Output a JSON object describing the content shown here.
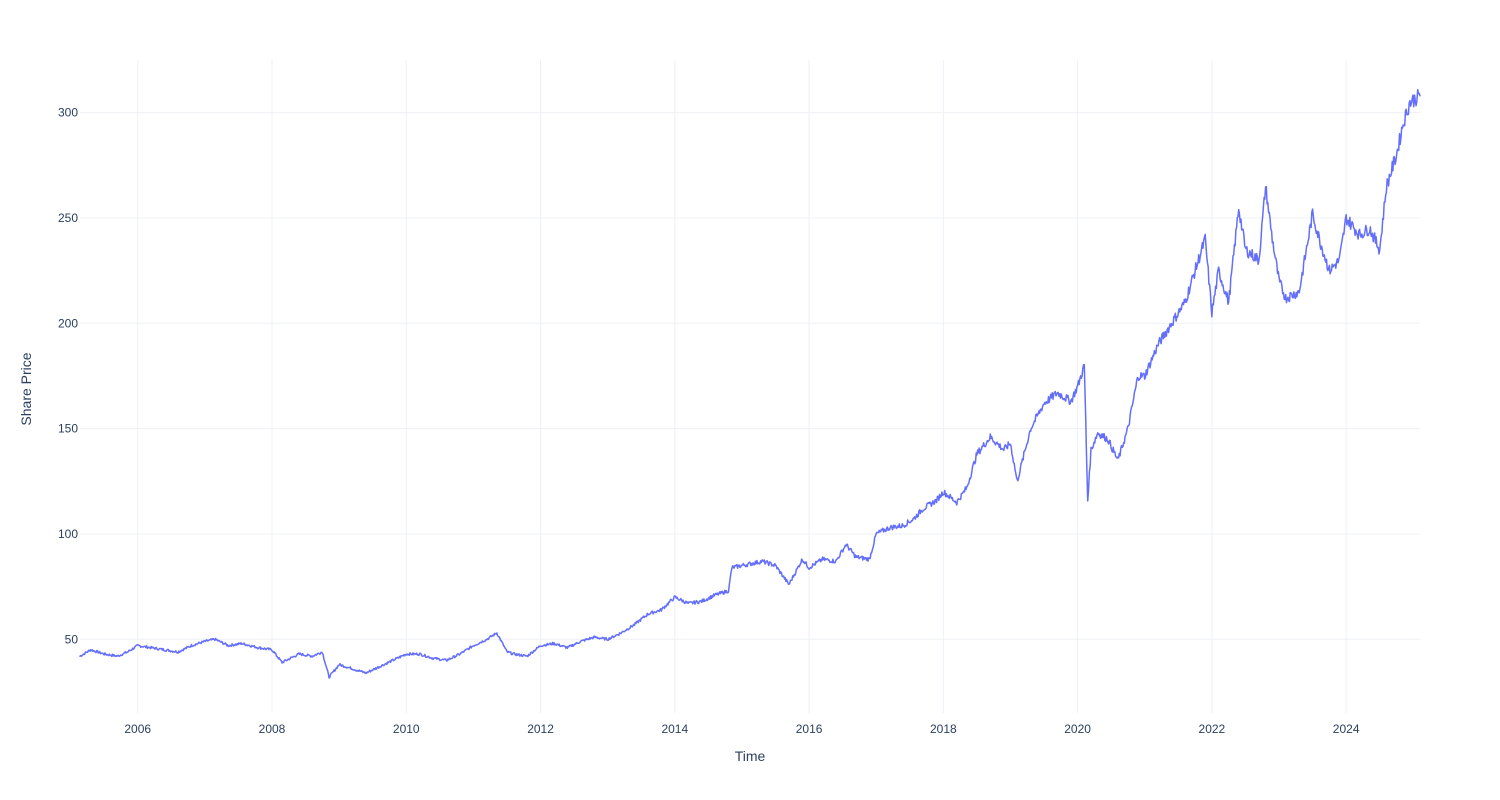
{
  "chart_data": {
    "type": "line",
    "title": "",
    "xlabel": "Time",
    "ylabel": "Share Price",
    "xlim": [
      2005.14,
      2025.1
    ],
    "ylim": [
      15,
      325
    ],
    "x_ticks": [
      2006,
      2008,
      2010,
      2012,
      2014,
      2016,
      2018,
      2020,
      2022,
      2024
    ],
    "x_tick_labels": [
      "2006",
      "2008",
      "2010",
      "2012",
      "2014",
      "2016",
      "2018",
      "2020",
      "2022",
      "2024"
    ],
    "y_ticks": [
      50,
      100,
      150,
      200,
      250,
      300
    ],
    "y_tick_labels": [
      "50",
      "100",
      "150",
      "200",
      "250",
      "300"
    ],
    "grid": true,
    "legend": "none",
    "colors": {
      "line": "#636efa",
      "grid": "#eef0f4",
      "text": "#2a3f5f"
    },
    "series": [
      {
        "values_x": [
          2005.14,
          2005.3,
          2005.5,
          2005.7,
          2005.85,
          2006.0,
          2006.2,
          2006.4,
          2006.6,
          2006.8,
          2007.0,
          2007.15,
          2007.35,
          2007.55,
          2007.8,
          2008.0,
          2008.15,
          2008.4,
          2008.6,
          2008.75,
          2008.85,
          2009.0,
          2009.2,
          2009.4,
          2009.6,
          2009.8,
          2010.0,
          2010.2,
          2010.4,
          2010.6,
          2010.8,
          2011.0,
          2011.2,
          2011.35,
          2011.5,
          2011.6,
          2011.8,
          2012.0,
          2012.2,
          2012.4,
          2012.6,
          2012.8,
          2013.0,
          2013.2,
          2013.4,
          2013.6,
          2013.8,
          2014.0,
          2014.2,
          2014.4,
          2014.6,
          2014.8,
          2014.85,
          2015.0,
          2015.3,
          2015.5,
          2015.7,
          2015.9,
          2016.0,
          2016.2,
          2016.4,
          2016.55,
          2016.7,
          2016.9,
          2017.0,
          2017.2,
          2017.4,
          2017.55,
          2017.7,
          2017.9,
          2018.0,
          2018.2,
          2018.35,
          2018.5,
          2018.7,
          2018.9,
          2019.0,
          2019.1,
          2019.3,
          2019.5,
          2019.7,
          2019.9,
          2020.0,
          2020.1,
          2020.15,
          2020.2,
          2020.3,
          2020.45,
          2020.6,
          2020.75,
          2020.9,
          2021.0,
          2021.2,
          2021.4,
          2021.6,
          2021.75,
          2021.9,
          2022.0,
          2022.1,
          2022.25,
          2022.4,
          2022.5,
          2022.7,
          2022.8,
          2022.9,
          2023.0,
          2023.1,
          2023.3,
          2023.5,
          2023.6,
          2023.75,
          2023.9,
          2024.0,
          2024.2,
          2024.35,
          2024.5,
          2024.6,
          2024.75,
          2024.85,
          2024.95,
          2025.1
        ],
        "values_y": [
          42,
          45,
          43,
          42,
          44,
          47,
          46,
          45,
          44,
          47,
          49,
          50,
          47,
          48,
          46,
          45,
          39,
          43,
          42,
          44,
          32,
          38,
          36,
          34,
          37,
          40,
          43,
          43,
          41,
          40,
          43,
          47,
          50,
          53,
          44,
          43,
          42,
          47,
          48,
          46,
          49,
          51,
          50,
          53,
          57,
          62,
          64,
          70,
          67,
          68,
          71,
          73,
          84,
          85,
          87,
          85,
          76,
          88,
          84,
          88,
          87,
          95,
          89,
          88,
          100,
          103,
          104,
          107,
          112,
          116,
          120,
          115,
          122,
          138,
          146,
          140,
          143,
          125,
          150,
          162,
          167,
          163,
          170,
          180,
          116,
          140,
          148,
          145,
          135,
          150,
          175,
          175,
          190,
          200,
          210,
          225,
          240,
          205,
          225,
          210,
          255,
          235,
          230,
          265,
          240,
          220,
          212,
          215,
          252,
          240,
          225,
          230,
          250,
          242,
          245,
          235,
          265,
          280,
          295,
          305,
          308
        ]
      }
    ]
  }
}
